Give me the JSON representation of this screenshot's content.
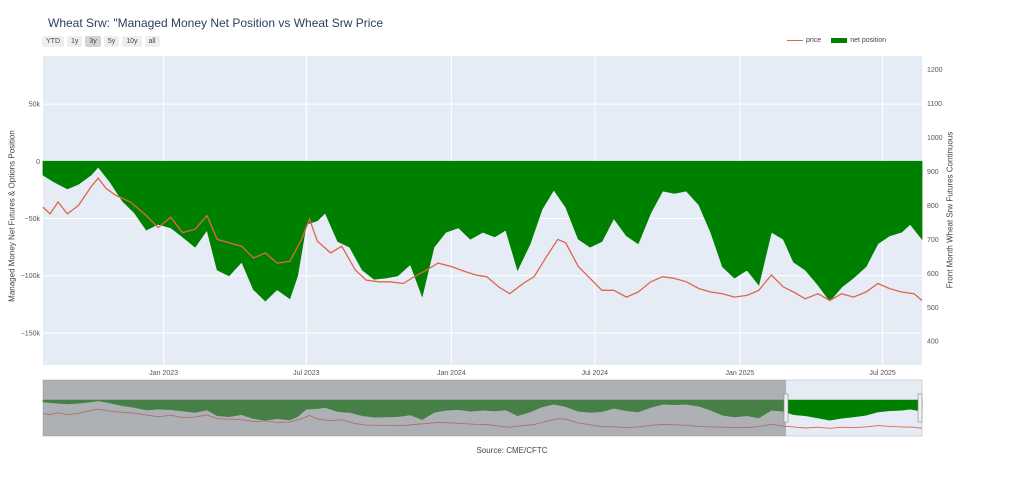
{
  "title": "Wheat Srw: \"Managed Money Net Position vs Wheat Srw Price",
  "range_buttons": [
    "YTD",
    "1y",
    "3y",
    "5y",
    "10y",
    "all"
  ],
  "active_range": "3y",
  "legend": {
    "price_label": "price",
    "net_label": "net position"
  },
  "source": "Source: CME/CFTC",
  "colors": {
    "price": "#e0654a",
    "net": "#008000",
    "plot_bg": "#e5ecf6",
    "selector_shade": "#808080"
  },
  "chart_data": {
    "type": "area",
    "x_ticks": [
      "Jan 2023",
      "Jul 2023",
      "Jan 2024",
      "Jul 2024",
      "Jan 2025",
      "Jul 2025"
    ],
    "y_left": {
      "label": "Managed Money Net Futures & Options Position",
      "ticks": [
        "50k",
        "0",
        "−50k",
        "−100k",
        "−150k"
      ],
      "range": [
        -178000,
        92000
      ]
    },
    "y_right": {
      "label": "Front Month Wheat Srw Futures Continuous",
      "ticks": [
        "400",
        "500",
        "600",
        "700",
        "800",
        "900",
        "1000",
        "1100",
        "1200"
      ],
      "range": [
        330,
        1240
      ]
    },
    "x_range": [
      "2022-08-01",
      "2025-08-20"
    ],
    "series": [
      {
        "name": "net position",
        "type": "area",
        "points": [
          [
            "2022-08-01",
            -12000
          ],
          [
            "2022-08-15",
            -18000
          ],
          [
            "2022-09-01",
            -24000
          ],
          [
            "2022-09-15",
            -20000
          ],
          [
            "2022-10-01",
            -12000
          ],
          [
            "2022-10-10",
            -5000
          ],
          [
            "2022-10-25",
            -18000
          ],
          [
            "2022-11-10",
            -35000
          ],
          [
            "2022-11-25",
            -45000
          ],
          [
            "2022-12-10",
            -60000
          ],
          [
            "2022-12-25",
            -55000
          ],
          [
            "2023-01-10",
            -58000
          ],
          [
            "2023-01-25",
            -66000
          ],
          [
            "2023-02-10",
            -75000
          ],
          [
            "2023-02-25",
            -60000
          ],
          [
            "2023-03-10",
            -95000
          ],
          [
            "2023-03-25",
            -100000
          ],
          [
            "2023-04-10",
            -88000
          ],
          [
            "2023-04-25",
            -112000
          ],
          [
            "2023-05-10",
            -122000
          ],
          [
            "2023-05-25",
            -112000
          ],
          [
            "2023-06-10",
            -120000
          ],
          [
            "2023-06-20",
            -100000
          ],
          [
            "2023-07-01",
            -55000
          ],
          [
            "2023-07-15",
            -52000
          ],
          [
            "2023-07-25",
            -45000
          ],
          [
            "2023-08-10",
            -70000
          ],
          [
            "2023-08-25",
            -75000
          ],
          [
            "2023-09-10",
            -95000
          ],
          [
            "2023-09-25",
            -103000
          ],
          [
            "2023-10-10",
            -102000
          ],
          [
            "2023-10-25",
            -100000
          ],
          [
            "2023-11-10",
            -90000
          ],
          [
            "2023-11-25",
            -118000
          ],
          [
            "2023-12-10",
            -75000
          ],
          [
            "2023-12-25",
            -62000
          ],
          [
            "2024-01-10",
            -58000
          ],
          [
            "2024-01-25",
            -68000
          ],
          [
            "2024-02-10",
            -62000
          ],
          [
            "2024-02-25",
            -66000
          ],
          [
            "2024-03-10",
            -60000
          ],
          [
            "2024-03-25",
            -95000
          ],
          [
            "2024-04-10",
            -72000
          ],
          [
            "2024-04-25",
            -42000
          ],
          [
            "2024-05-10",
            -25000
          ],
          [
            "2024-05-25",
            -40000
          ],
          [
            "2024-06-10",
            -68000
          ],
          [
            "2024-06-25",
            -75000
          ],
          [
            "2024-07-10",
            -70000
          ],
          [
            "2024-07-25",
            -50000
          ],
          [
            "2024-08-10",
            -65000
          ],
          [
            "2024-08-25",
            -72000
          ],
          [
            "2024-09-10",
            -45000
          ],
          [
            "2024-09-25",
            -26000
          ],
          [
            "2024-10-10",
            -28000
          ],
          [
            "2024-10-25",
            -26000
          ],
          [
            "2024-11-10",
            -38000
          ],
          [
            "2024-11-25",
            -62000
          ],
          [
            "2024-12-10",
            -92000
          ],
          [
            "2024-12-25",
            -102000
          ],
          [
            "2025-01-10",
            -95000
          ],
          [
            "2025-01-25",
            -108000
          ],
          [
            "2025-02-10",
            -62000
          ],
          [
            "2025-02-25",
            -68000
          ],
          [
            "2025-03-10",
            -88000
          ],
          [
            "2025-03-25",
            -95000
          ],
          [
            "2025-04-10",
            -108000
          ],
          [
            "2025-04-25",
            -122000
          ],
          [
            "2025-05-10",
            -110000
          ],
          [
            "2025-05-25",
            -102000
          ],
          [
            "2025-06-10",
            -92000
          ],
          [
            "2025-06-25",
            -72000
          ],
          [
            "2025-07-10",
            -65000
          ],
          [
            "2025-07-25",
            -62000
          ],
          [
            "2025-08-05",
            -55000
          ],
          [
            "2025-08-20",
            -68000
          ]
        ]
      },
      {
        "name": "price",
        "type": "line",
        "points": [
          [
            "2022-08-01",
            795
          ],
          [
            "2022-08-10",
            775
          ],
          [
            "2022-08-20",
            810
          ],
          [
            "2022-09-01",
            775
          ],
          [
            "2022-09-15",
            800
          ],
          [
            "2022-10-01",
            855
          ],
          [
            "2022-10-10",
            880
          ],
          [
            "2022-10-20",
            850
          ],
          [
            "2022-11-01",
            830
          ],
          [
            "2022-11-20",
            810
          ],
          [
            "2022-12-10",
            770
          ],
          [
            "2022-12-25",
            735
          ],
          [
            "2023-01-10",
            765
          ],
          [
            "2023-01-25",
            720
          ],
          [
            "2023-02-10",
            730
          ],
          [
            "2023-02-25",
            770
          ],
          [
            "2023-03-10",
            700
          ],
          [
            "2023-03-25",
            690
          ],
          [
            "2023-04-10",
            680
          ],
          [
            "2023-04-25",
            645
          ],
          [
            "2023-05-10",
            660
          ],
          [
            "2023-05-25",
            630
          ],
          [
            "2023-06-10",
            635
          ],
          [
            "2023-06-25",
            700
          ],
          [
            "2023-07-05",
            760
          ],
          [
            "2023-07-15",
            695
          ],
          [
            "2023-08-01",
            660
          ],
          [
            "2023-08-15",
            680
          ],
          [
            "2023-09-01",
            610
          ],
          [
            "2023-09-15",
            580
          ],
          [
            "2023-10-01",
            575
          ],
          [
            "2023-10-15",
            575
          ],
          [
            "2023-11-01",
            570
          ],
          [
            "2023-11-15",
            590
          ],
          [
            "2023-12-01",
            610
          ],
          [
            "2023-12-15",
            630
          ],
          [
            "2024-01-01",
            620
          ],
          [
            "2024-01-15",
            608
          ],
          [
            "2024-02-01",
            595
          ],
          [
            "2024-02-15",
            590
          ],
          [
            "2024-03-01",
            560
          ],
          [
            "2024-03-15",
            540
          ],
          [
            "2024-04-01",
            570
          ],
          [
            "2024-04-15",
            590
          ],
          [
            "2024-05-01",
            650
          ],
          [
            "2024-05-15",
            700
          ],
          [
            "2024-05-25",
            690
          ],
          [
            "2024-06-10",
            620
          ],
          [
            "2024-06-25",
            585
          ],
          [
            "2024-07-10",
            550
          ],
          [
            "2024-07-25",
            550
          ],
          [
            "2024-08-10",
            530
          ],
          [
            "2024-08-25",
            545
          ],
          [
            "2024-09-10",
            575
          ],
          [
            "2024-09-25",
            590
          ],
          [
            "2024-10-10",
            585
          ],
          [
            "2024-10-25",
            575
          ],
          [
            "2024-11-10",
            555
          ],
          [
            "2024-11-25",
            545
          ],
          [
            "2024-12-10",
            540
          ],
          [
            "2024-12-25",
            530
          ],
          [
            "2025-01-10",
            535
          ],
          [
            "2025-01-25",
            550
          ],
          [
            "2025-02-10",
            595
          ],
          [
            "2025-02-25",
            560
          ],
          [
            "2025-03-10",
            545
          ],
          [
            "2025-03-25",
            525
          ],
          [
            "2025-04-10",
            540
          ],
          [
            "2025-04-25",
            520
          ],
          [
            "2025-05-10",
            540
          ],
          [
            "2025-05-25",
            530
          ],
          [
            "2025-06-10",
            545
          ],
          [
            "2025-06-25",
            570
          ],
          [
            "2025-07-10",
            555
          ],
          [
            "2025-07-25",
            545
          ],
          [
            "2025-08-10",
            540
          ],
          [
            "2025-08-20",
            520
          ]
        ]
      }
    ]
  },
  "range_selector": {
    "selection_start": "2022-08-01",
    "selection_end": "2025-08-20",
    "shaded": "outside-selection"
  }
}
